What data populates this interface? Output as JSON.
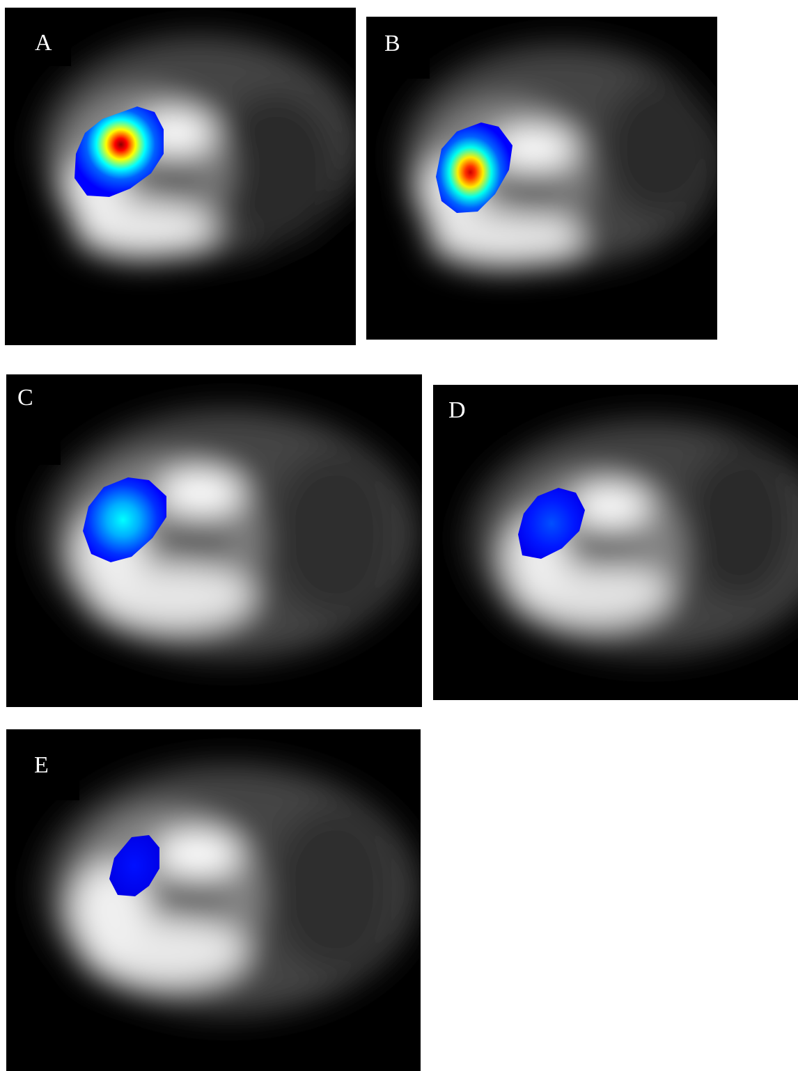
{
  "panels": [
    {
      "id": "A",
      "label": "A",
      "hotspot_colormap": [
        "#8b0000",
        "#ff0000",
        "#ffff00",
        "#00ffff",
        "#0000ff"
      ]
    },
    {
      "id": "B",
      "label": "B",
      "hotspot_colormap": [
        "#ff0000",
        "#ffff00",
        "#00ffff",
        "#0000ff"
      ]
    },
    {
      "id": "C",
      "label": "C",
      "hotspot_colormap": [
        "#00ffff",
        "#0080ff",
        "#0000ff"
      ]
    },
    {
      "id": "D",
      "label": "D",
      "hotspot_colormap": [
        "#0040ff",
        "#0000ff"
      ]
    },
    {
      "id": "E",
      "label": "E",
      "hotspot_colormap": [
        "#0000ff"
      ]
    }
  ]
}
